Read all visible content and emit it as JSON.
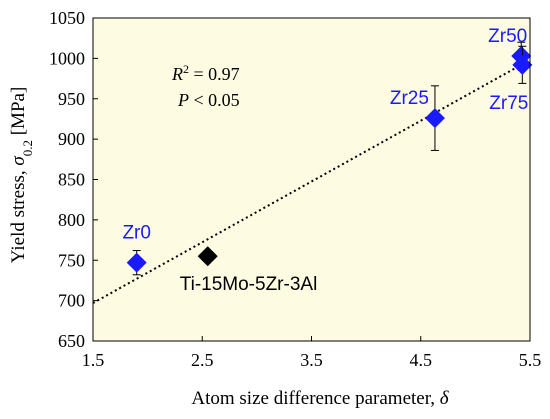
{
  "chart_data": {
    "type": "scatter",
    "x_range": [
      1.5,
      5.5
    ],
    "y_range": [
      650,
      1050
    ],
    "x_ticks": [
      "1.5",
      "2.5",
      "3.5",
      "4.5",
      "5.5"
    ],
    "y_ticks": [
      "650",
      "700",
      "750",
      "800",
      "850",
      "900",
      "950",
      "1000",
      "1050"
    ],
    "x_tick_values": [
      1.5,
      2.5,
      3.5,
      4.5,
      5.5
    ],
    "y_tick_values": [
      650,
      700,
      750,
      800,
      850,
      900,
      950,
      1000,
      1050
    ],
    "xlabel": {
      "text": "Atom size difference parameter, ",
      "symbol": "δ"
    },
    "ylabel": {
      "text": "Yield stress, ",
      "symbol": "σ",
      "subscript": "0.2",
      "unit": " [MPa]"
    },
    "grid": false,
    "plot_background": "#fdfbe2",
    "series": [
      {
        "color": "#1a1aff",
        "points": [
          {
            "label": "Zr0",
            "x": 1.9,
            "y": 747,
            "err": 15
          },
          {
            "label": "Zr25",
            "x": 4.63,
            "y": 926,
            "err": 40
          },
          {
            "label": "Zr50",
            "x": 5.42,
            "y": 1003,
            "err": 17
          },
          {
            "label": "Zr75",
            "x": 5.43,
            "y": 992,
            "err": 23
          }
        ]
      },
      {
        "color": "#000000",
        "points": [
          {
            "label": "Ti-15Mo-5Zr-3Al",
            "x": 2.55,
            "y": 755,
            "err": 0
          }
        ]
      }
    ],
    "trendline": {
      "style": "dotted",
      "x": [
        1.5,
        5.5
      ],
      "y": [
        697,
        998
      ]
    },
    "annotations": {
      "r2": {
        "base": "R",
        "sup": "2",
        "text": " = 0.97"
      },
      "p": {
        "base": "P",
        "text": " < 0.05"
      }
    }
  }
}
